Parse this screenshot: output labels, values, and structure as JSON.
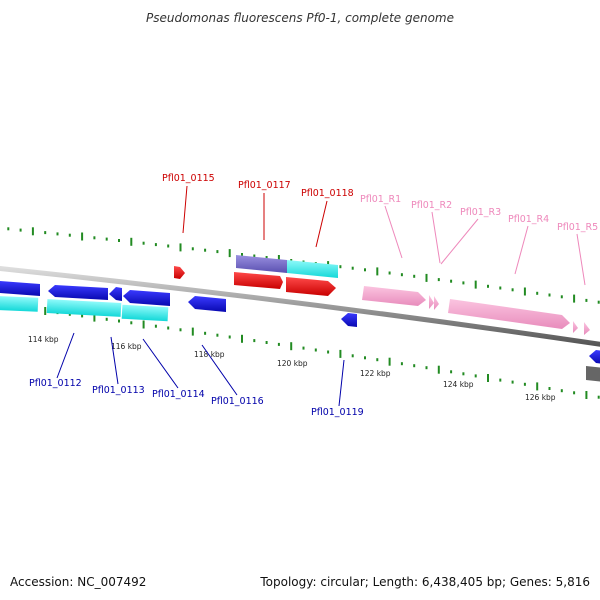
{
  "title": "Pseudomonas fluorescens Pf0-1, complete genome",
  "footer": {
    "accession": "Accession: NC_007492",
    "topology": "Topology: circular; Length: 6,438,405 bp; Genes: 5,816"
  },
  "colors": {
    "forward_gene": "#ee1111",
    "forward_gene_label": "#cc0000",
    "reverse_gene": "#1515dd",
    "reverse_gene_label": "#0000aa",
    "rna": "#f7a8d0",
    "rna_label": "#ee88bb",
    "cds_cyan": "#22eeee",
    "cds_purple": "#7a6fcc",
    "backbone": "#8a8a8a",
    "tick": "#228b22",
    "dark_feature": "#666666"
  },
  "scale_ticks": [
    {
      "label": "114 kbp"
    },
    {
      "label": "116 kbp"
    },
    {
      "label": "118 kbp"
    },
    {
      "label": "120 kbp"
    },
    {
      "label": "122 kbp"
    },
    {
      "label": "124 kbp"
    },
    {
      "label": "126 kbp"
    }
  ],
  "gene_labels_top": [
    {
      "name": "Pfl01_0115",
      "kind": "forward"
    },
    {
      "name": "Pfl01_0117",
      "kind": "forward"
    },
    {
      "name": "Pfl01_0118",
      "kind": "forward"
    },
    {
      "name": "Pfl01_R1",
      "kind": "rna"
    },
    {
      "name": "Pfl01_R2",
      "kind": "rna"
    },
    {
      "name": "Pfl01_R3",
      "kind": "rna"
    },
    {
      "name": "Pfl01_R4",
      "kind": "rna"
    },
    {
      "name": "Pfl01_R5",
      "kind": "rna"
    }
  ],
  "gene_labels_bottom": [
    {
      "name": "Pfl01_0112"
    },
    {
      "name": "Pfl01_0113"
    },
    {
      "name": "Pfl01_0114"
    },
    {
      "name": "Pfl01_0116"
    },
    {
      "name": "Pfl01_0119"
    }
  ]
}
